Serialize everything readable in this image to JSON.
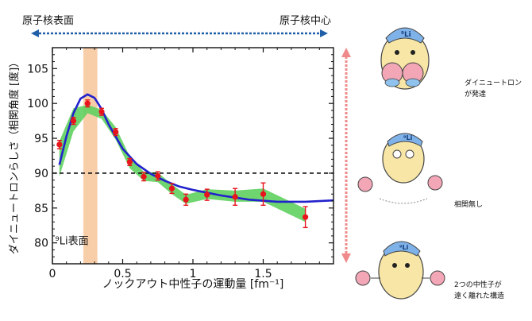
{
  "header": {
    "left_label": "原子核表面",
    "right_label": "原子核中心"
  },
  "side_panel": {
    "labels": [
      {
        "lines": [
          "ダイニュートロン",
          "が発達"
        ]
      },
      {
        "lines": [
          "相関無し"
        ]
      },
      {
        "lines": [
          "2つの中性子が",
          "遠く離れた構造"
        ]
      }
    ]
  },
  "colors": {
    "band": "#5fd05f",
    "curve": "#2222cc",
    "points": "#e8141c",
    "highlight": "#f7c59a",
    "arrow_blue": "#1f5fa8",
    "arrow_pink": "#f08a8a"
  },
  "chart_data": {
    "type": "line",
    "xlabel": "ノックアウト中性子の運動量 [fm⁻¹]",
    "ylabel": "ダイニュートロンらしさ（相関角度 [度]）",
    "xlim": [
      0,
      2.0
    ],
    "ylim": [
      77,
      108
    ],
    "xticks": [
      0,
      0.5,
      1,
      1.5
    ],
    "xtick_labels": [
      "0",
      "0.5",
      "1",
      "1.5"
    ],
    "yticks": [
      80,
      85,
      90,
      95,
      100,
      105
    ],
    "ytick_labels": [
      "80",
      "85",
      "90",
      "95",
      "100",
      "105"
    ],
    "annotation": {
      "text": "⁹Li表面",
      "x": 0.02,
      "y": 79.8
    },
    "highlight_band": {
      "x_from": 0.22,
      "x_to": 0.32
    },
    "reference_line": {
      "y": 90
    },
    "series": [
      {
        "style": "points",
        "x": [
          0.05,
          0.15,
          0.25,
          0.35,
          0.45,
          0.55,
          0.65,
          0.75,
          0.85,
          0.95,
          1.1,
          1.3,
          1.5,
          1.8
        ],
        "y": [
          94.1,
          97.5,
          100.0,
          98.8,
          95.9,
          91.6,
          89.5,
          89.6,
          87.8,
          86.2,
          86.9,
          86.6,
          87.0,
          83.7
        ],
        "err": [
          0.6,
          0.5,
          0.5,
          0.5,
          0.5,
          0.5,
          0.6,
          0.6,
          0.7,
          0.8,
          0.8,
          1.2,
          1.6,
          1.5
        ]
      },
      {
        "style": "curve",
        "x": [
          0.05,
          0.1,
          0.15,
          0.2,
          0.25,
          0.3,
          0.35,
          0.4,
          0.5,
          0.6,
          0.7,
          0.8,
          0.9,
          1.0,
          1.2,
          1.4,
          1.6,
          1.8,
          2.0
        ],
        "y": [
          91.2,
          95.3,
          98.6,
          100.7,
          101.3,
          100.8,
          99.2,
          97.0,
          93.5,
          91.3,
          89.9,
          88.9,
          88.1,
          87.6,
          86.8,
          86.2,
          85.9,
          85.9,
          86.1
        ]
      },
      {
        "style": "band",
        "x": [
          0.05,
          0.15,
          0.25,
          0.35,
          0.45,
          0.55,
          0.65,
          0.75,
          0.85,
          0.95,
          1.1,
          1.3,
          1.5,
          1.8
        ],
        "y_low": [
          89.5,
          96.0,
          98.6,
          97.8,
          94.8,
          90.7,
          88.9,
          88.7,
          87.0,
          85.6,
          86.3,
          85.9,
          85.9,
          83.0
        ],
        "y_high": [
          94.6,
          99.3,
          99.8,
          99.1,
          96.6,
          92.4,
          90.2,
          90.1,
          88.4,
          86.9,
          87.7,
          87.5,
          87.8,
          84.9
        ]
      }
    ]
  }
}
